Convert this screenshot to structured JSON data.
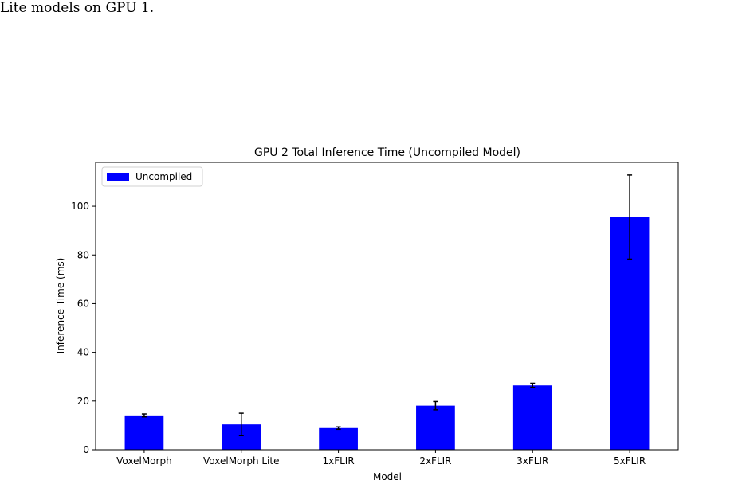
{
  "document": {
    "caption_fragment": "Lite models on GPU 1."
  },
  "chart_data": {
    "type": "bar",
    "title": "GPU 2 Total Inference Time (Uncompiled Model)",
    "xlabel": "Model",
    "ylabel": "Inference Time (ms)",
    "categories": [
      "VoxelMorph",
      "VoxelMorph Lite",
      "1xFLIR",
      "2xFLIR",
      "3xFLIR",
      "5xFLIR"
    ],
    "series": [
      {
        "name": "Uncompiled",
        "color": "#0000ff",
        "values": [
          14.1,
          10.4,
          8.9,
          18.1,
          26.4,
          95.6
        ],
        "error_low": [
          13.5,
          5.8,
          8.4,
          16.4,
          25.6,
          78.3
        ],
        "error_high": [
          14.7,
          15.0,
          9.4,
          19.8,
          27.3,
          112.8
        ]
      }
    ],
    "ylim": [
      0,
      118
    ],
    "yticks": [
      0,
      20,
      40,
      60,
      80,
      100
    ],
    "legend_position": "top-left",
    "grid": false
  }
}
